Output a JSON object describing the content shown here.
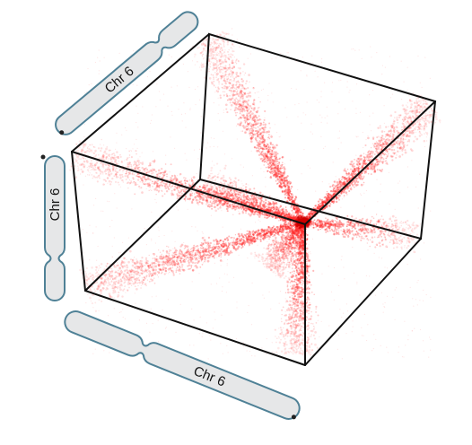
{
  "figure": {
    "description_free": true,
    "point_color": "#ff2a2a",
    "edge_color": "#111111",
    "chromosome_fill": "#e6e7e8",
    "chromosome_stroke": "#4f8196"
  },
  "chromosomes": {
    "top_axis": {
      "label": "Chr 6"
    },
    "left_axis": {
      "label": "Chr 6"
    },
    "bottom_axis": {
      "label": "Chr 6"
    }
  },
  "icons": {
    "telomere": "telomere-dot-icon"
  }
}
